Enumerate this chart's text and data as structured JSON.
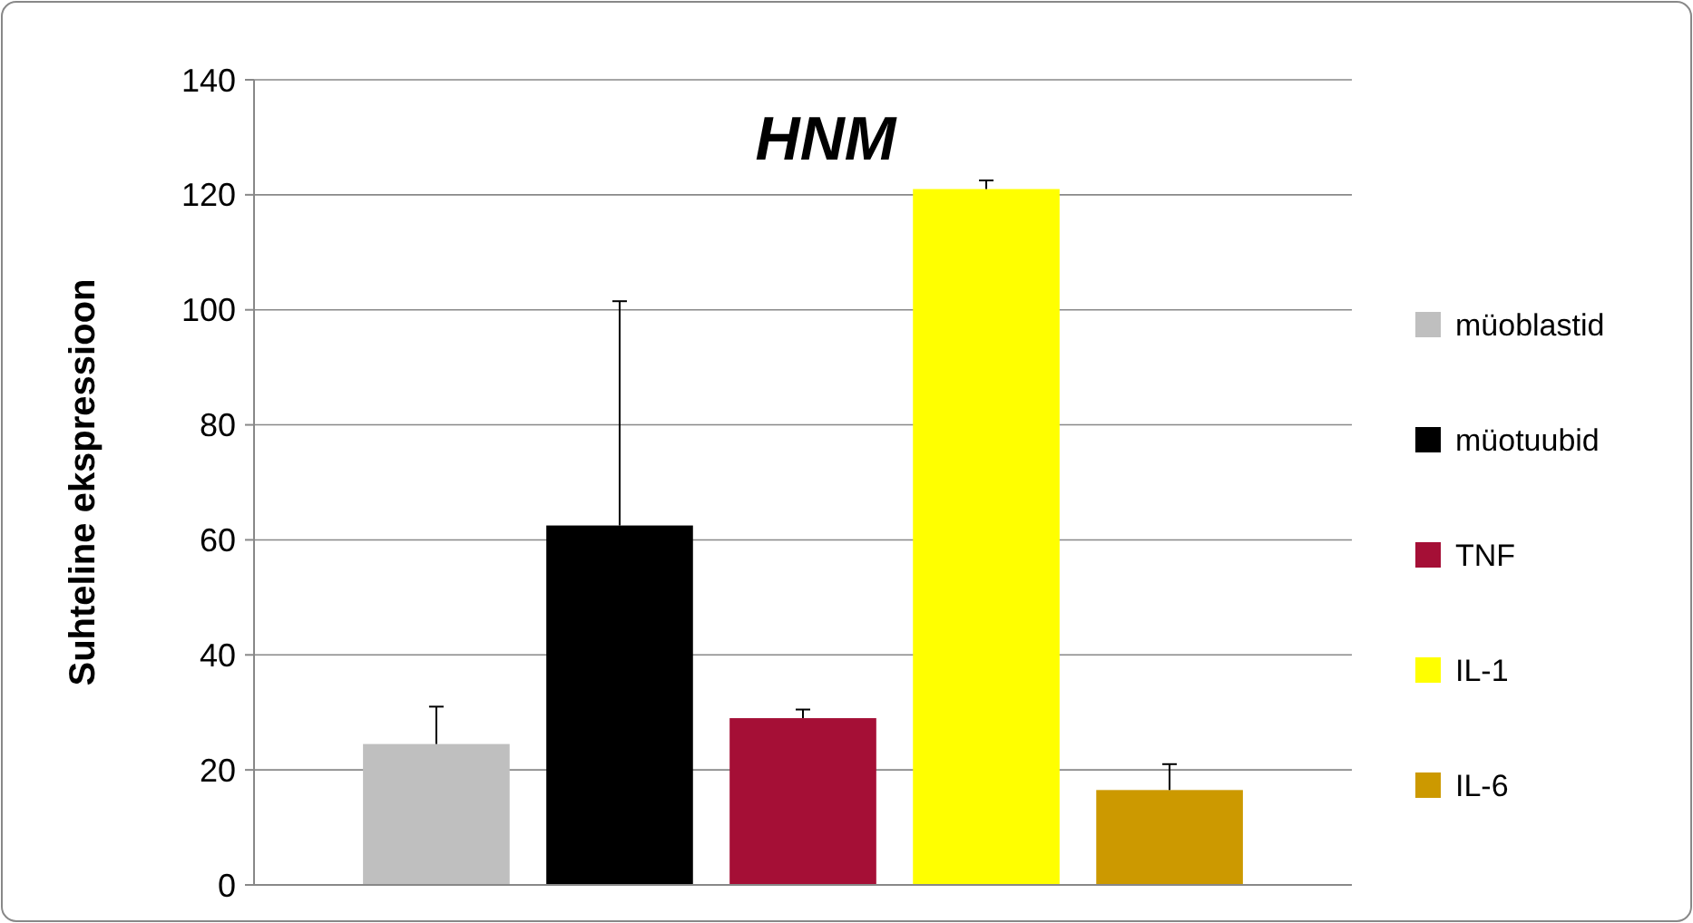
{
  "chart_data": {
    "type": "bar",
    "title": "HNM",
    "ylabel": "Suhteline ekspressioon",
    "categories": [
      null
    ],
    "series": [
      {
        "name": "müoblastid",
        "color": "#bfbfbf",
        "values": [
          24.5
        ],
        "errors": [
          [
            24.5,
            31
          ]
        ]
      },
      {
        "name": "müotuubid",
        "color": "#000000",
        "values": [
          62.5
        ],
        "errors": [
          [
            62.5,
            101.5
          ]
        ]
      },
      {
        "name": "TNF",
        "color": "#a50f36",
        "values": [
          29
        ],
        "errors": [
          [
            29,
            30.5
          ]
        ]
      },
      {
        "name": "IL-1",
        "color": "#ffff00",
        "values": [
          121
        ],
        "errors": [
          [
            121,
            122.5
          ]
        ]
      },
      {
        "name": "IL-6",
        "color": "#cc9900",
        "values": [
          16.5
        ],
        "errors": [
          [
            16.5,
            21
          ]
        ]
      }
    ],
    "ylim": [
      0,
      140
    ],
    "yticks": [
      0,
      20,
      40,
      60,
      80,
      100,
      120,
      140
    ],
    "grid": "y",
    "legend": "right"
  }
}
